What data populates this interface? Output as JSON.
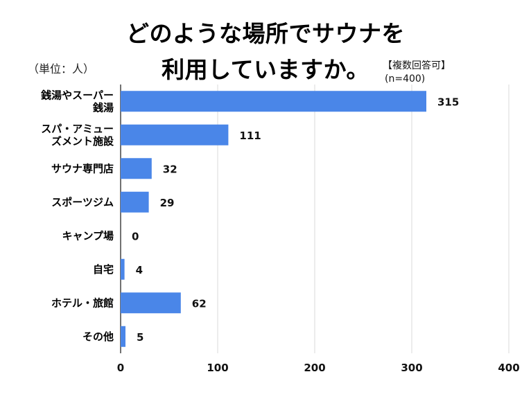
{
  "title": {
    "line1": "どのような場所でサウナを",
    "line2": "利用していますか。"
  },
  "unit_label": "（単位：人）",
  "note": "【複数回答可】",
  "sample_size": "(n=400)",
  "colors": {
    "bar": "#4a86e8",
    "grid": "#d9d9d9",
    "axis": "#444444"
  },
  "chart_data": {
    "type": "bar",
    "orientation": "horizontal",
    "categories": [
      [
        "銭湯やスーパー",
        "銭湯"
      ],
      [
        "スパ・アミュー",
        "ズメント施設"
      ],
      [
        "サウナ専門店"
      ],
      [
        "スポーツジム"
      ],
      [
        "キャンプ場"
      ],
      [
        "自宅"
      ],
      [
        "ホテル・旅館"
      ],
      [
        "その他"
      ]
    ],
    "values": [
      315,
      111,
      32,
      29,
      0,
      4,
      62,
      5
    ],
    "xlim": [
      0,
      400
    ],
    "xticks": [
      0,
      100,
      200,
      300,
      400
    ],
    "grid": true,
    "data_labels": true
  }
}
